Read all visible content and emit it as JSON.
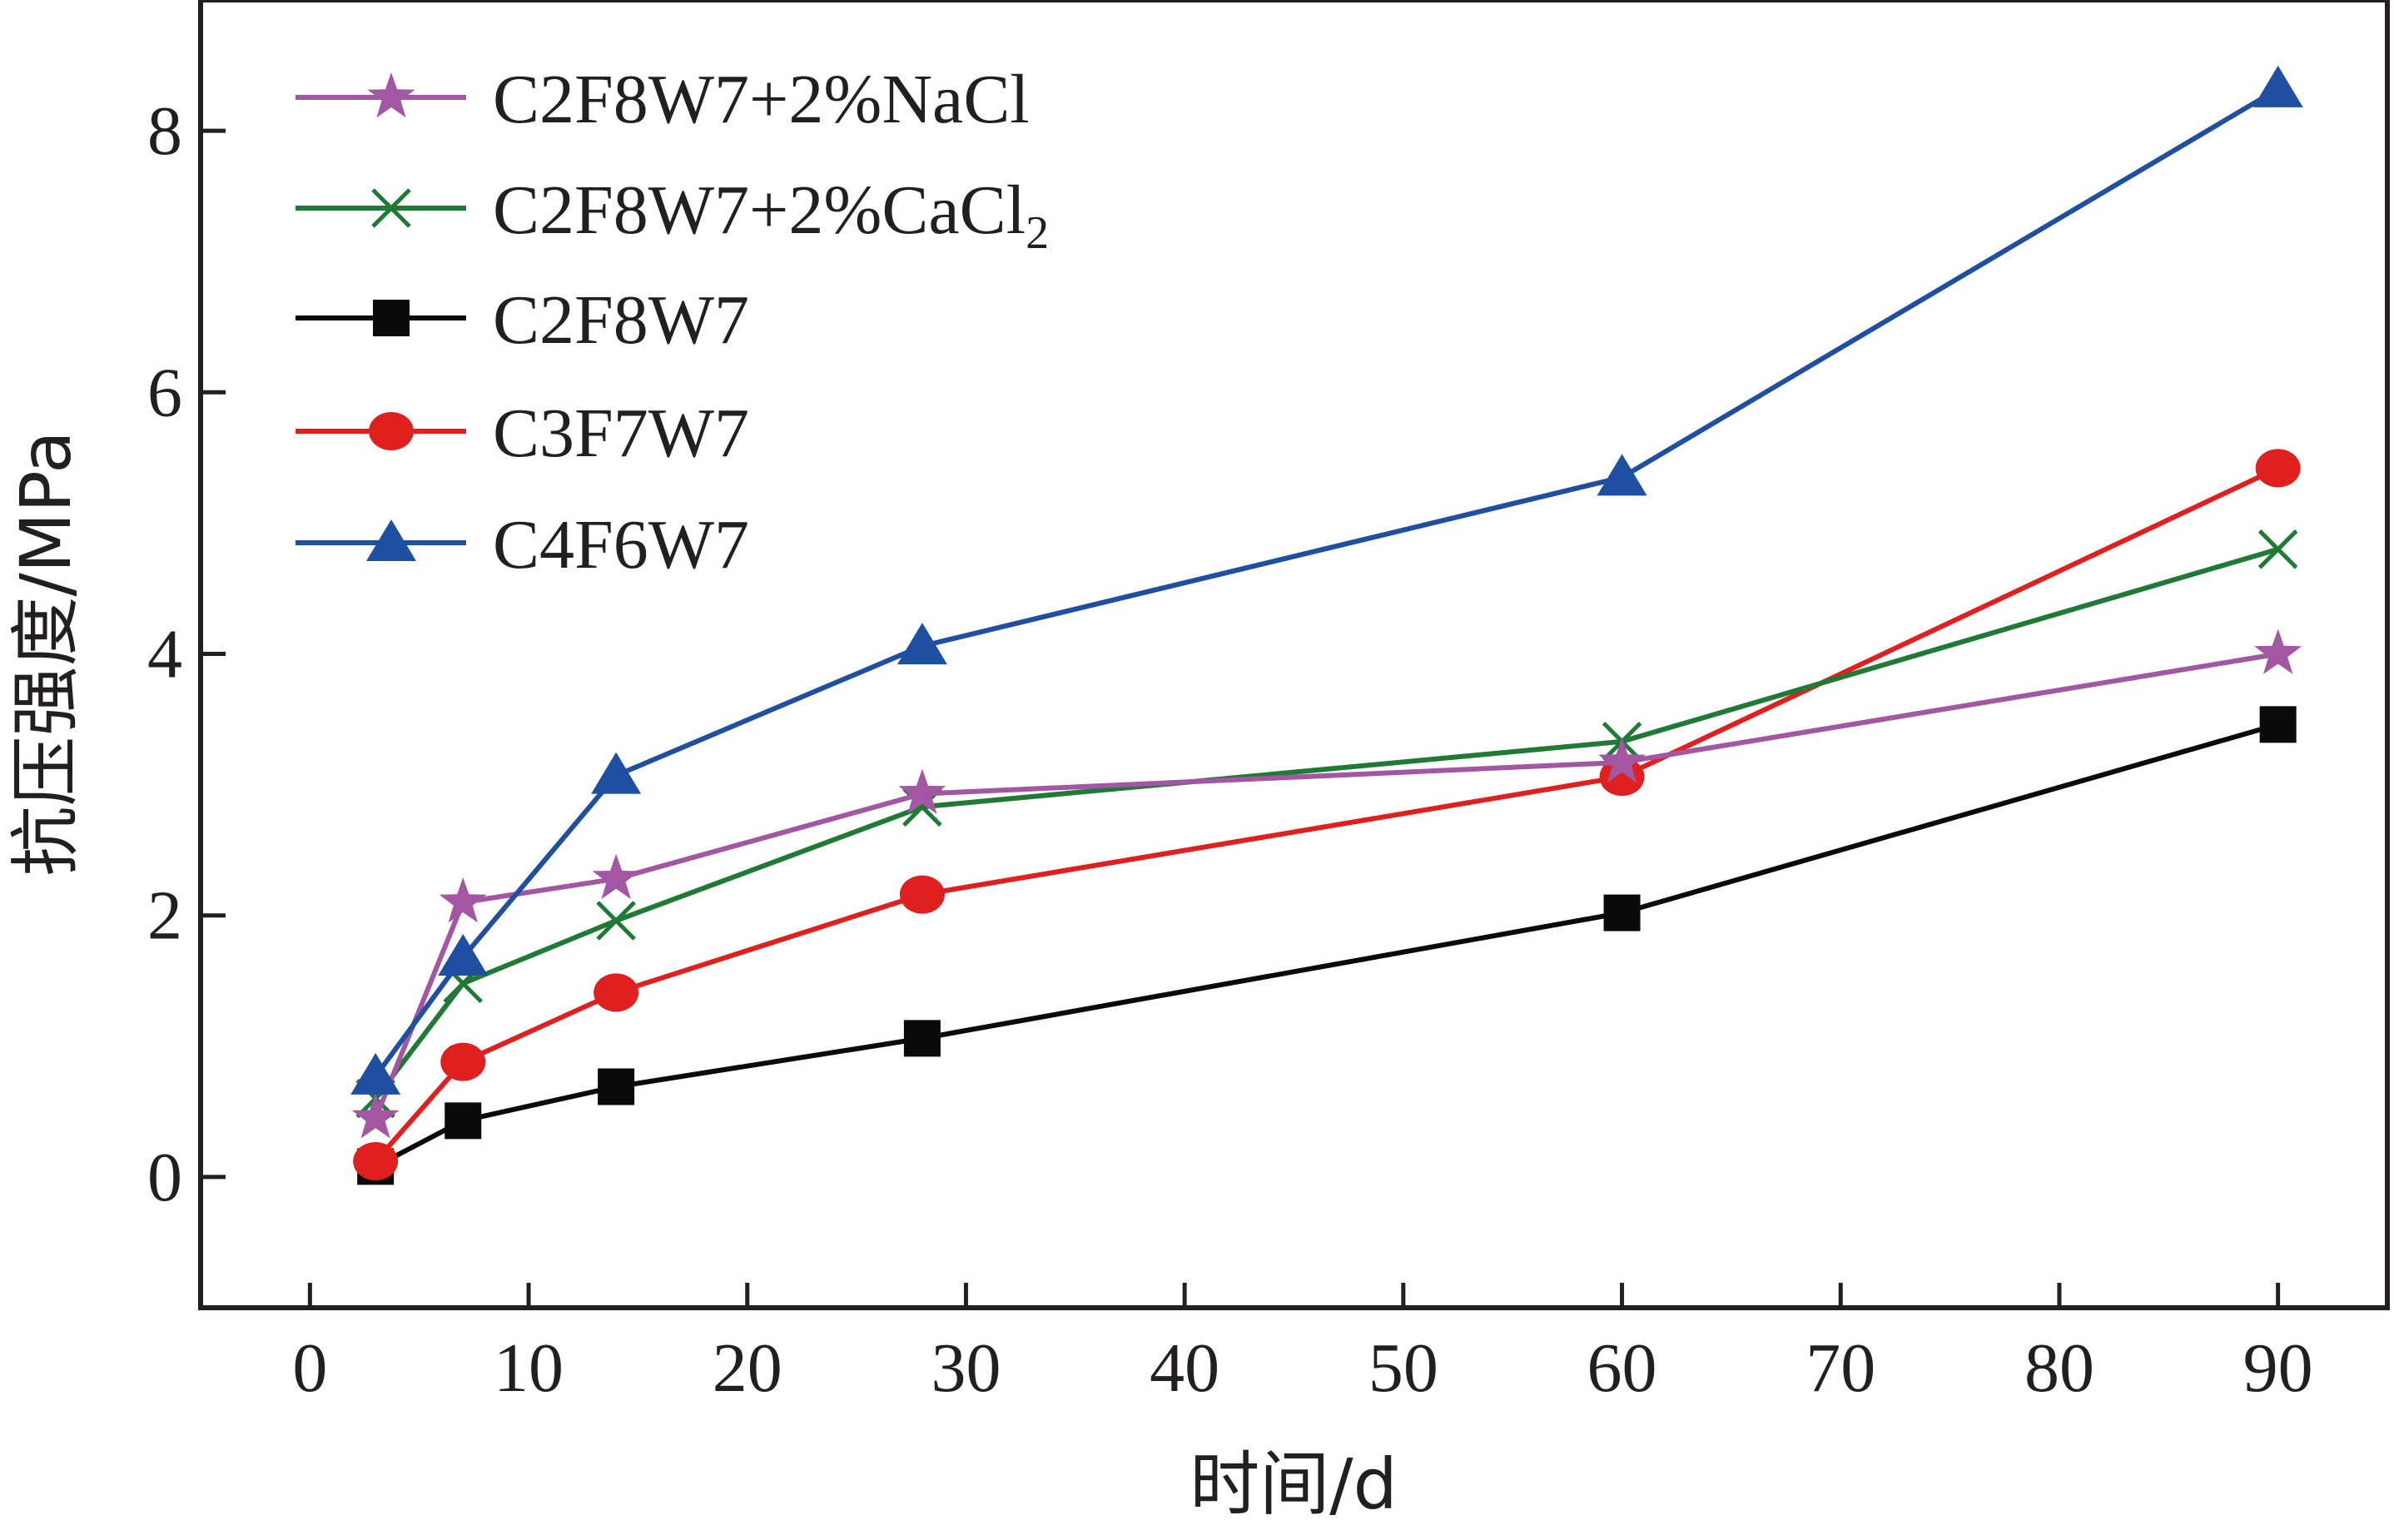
{
  "chart_data": {
    "type": "line",
    "xlabel": "时间/d",
    "ylabel": "抗压强度/MPa",
    "xlim": [
      -5,
      95
    ],
    "ylim": [
      -1,
      9
    ],
    "xticks": [
      0,
      10,
      20,
      30,
      40,
      50,
      60,
      70,
      80,
      90
    ],
    "yticks": [
      0,
      2,
      4,
      6,
      8
    ],
    "grid": false,
    "legend_position": "top-left",
    "x": [
      3,
      7,
      14,
      28,
      60,
      90
    ],
    "series": [
      {
        "name": "C2F8W7+2%NaCl",
        "marker": "star",
        "color": "#a356a2",
        "values": [
          0.45,
          2.1,
          2.28,
          2.93,
          3.17,
          4.0
        ]
      },
      {
        "name": "C2F8W7+2%CaCl",
        "name_subscript": "2",
        "marker": "x",
        "color": "#1f7a35",
        "values": [
          0.6,
          1.48,
          1.96,
          2.83,
          3.33,
          4.8
        ]
      },
      {
        "name": "C2F8W7",
        "marker": "square",
        "color": "#0a0a0a",
        "values": [
          0.08,
          0.43,
          0.69,
          1.06,
          2.02,
          3.46
        ]
      },
      {
        "name": "C3F7W7",
        "marker": "circle",
        "color": "#e0201f",
        "values": [
          0.12,
          0.88,
          1.41,
          2.16,
          3.06,
          5.42
        ]
      },
      {
        "name": "C4F6W7",
        "marker": "triangle",
        "color": "#1f4fa0",
        "values": [
          0.77,
          1.68,
          3.07,
          4.06,
          5.35,
          8.32
        ]
      }
    ]
  }
}
